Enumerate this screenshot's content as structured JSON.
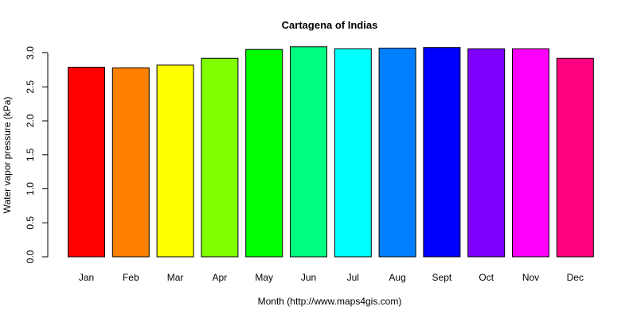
{
  "chart_data": {
    "type": "bar",
    "title": "Cartagena of Indias",
    "xlabel": "Month (http://www.maps4gis.com)",
    "ylabel": "Water vapor pressure (kPa)",
    "categories": [
      "Jan",
      "Feb",
      "Mar",
      "Apr",
      "May",
      "Jun",
      "Jul",
      "Aug",
      "Sept",
      "Oct",
      "Nov",
      "Dec"
    ],
    "values": [
      2.79,
      2.78,
      2.82,
      2.92,
      3.05,
      3.09,
      3.06,
      3.07,
      3.08,
      3.06,
      3.06,
      2.92
    ],
    "colors": [
      "#FF0000",
      "#FF8000",
      "#FFFF00",
      "#80FF00",
      "#00FF00",
      "#00FF80",
      "#00FFFF",
      "#0080FF",
      "#0000FF",
      "#8000FF",
      "#FF00FF",
      "#FF0080"
    ],
    "yticks": [
      "0.0",
      "0.5",
      "1.0",
      "1.5",
      "2.0",
      "2.5",
      "3.0"
    ],
    "ylim": [
      0,
      3.0
    ],
    "grid": false,
    "legend": "none"
  }
}
